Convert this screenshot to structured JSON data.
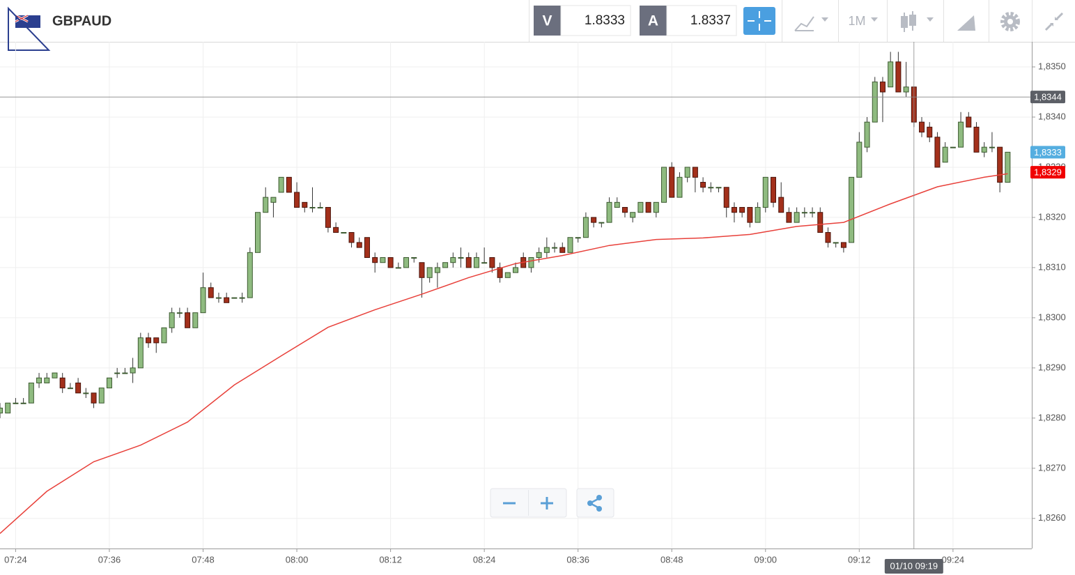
{
  "toolbar": {
    "instrument": "GBPAUD",
    "bid_label": "V",
    "bid": 1.8333,
    "ask_label": "A",
    "ask": 1.8337,
    "timeframe": "1M"
  },
  "chart_data": {
    "type": "candlestick",
    "x": [
      "07:22",
      "07:23",
      "07:24",
      "07:25",
      "07:26",
      "07:27",
      "07:28",
      "07:29",
      "07:30",
      "07:31",
      "07:32",
      "07:33",
      "07:34",
      "07:35",
      "07:36",
      "07:37",
      "07:38",
      "07:39",
      "07:40",
      "07:41",
      "07:42",
      "07:43",
      "07:44",
      "07:45",
      "07:46",
      "07:47",
      "07:48",
      "07:49",
      "07:50",
      "07:51",
      "07:52",
      "07:53",
      "07:54",
      "07:55",
      "07:56",
      "07:57",
      "07:58",
      "07:59",
      "08:00",
      "08:01",
      "08:02",
      "08:03",
      "08:04",
      "08:05",
      "08:06",
      "08:07",
      "08:08",
      "08:09",
      "08:10",
      "08:11",
      "08:12",
      "08:13",
      "08:14",
      "08:15",
      "08:16",
      "08:17",
      "08:18",
      "08:19",
      "08:20",
      "08:21",
      "08:22",
      "08:23",
      "08:24",
      "08:25",
      "08:26",
      "08:27",
      "08:28",
      "08:29",
      "08:30",
      "08:31",
      "08:32",
      "08:33",
      "08:34",
      "08:35",
      "08:36",
      "08:37",
      "08:38",
      "08:39",
      "08:40",
      "08:41",
      "08:42",
      "08:43",
      "08:44",
      "08:45",
      "08:46",
      "08:47",
      "08:48",
      "08:49",
      "08:50",
      "08:51",
      "08:52",
      "08:53",
      "08:54",
      "08:55",
      "08:56",
      "08:57",
      "08:58",
      "08:59",
      "09:00",
      "09:01",
      "09:02",
      "09:03",
      "09:04",
      "09:05",
      "09:06",
      "09:07",
      "09:08",
      "09:09",
      "09:10",
      "09:11",
      "09:12",
      "09:13",
      "09:14",
      "09:15",
      "09:16",
      "09:17",
      "09:18",
      "09:19",
      "09:20",
      "09:21",
      "09:22",
      "09:23",
      "09:24",
      "09:25",
      "09:26",
      "09:27",
      "09:28",
      "09:29",
      "09:30",
      "09:31"
    ],
    "open": [
      1.8281,
      1.8281,
      1.8283,
      1.8283,
      1.8283,
      1.8287,
      1.8287,
      1.8288,
      1.8288,
      1.8286,
      1.8287,
      1.8285,
      1.8285,
      1.8283,
      1.8286,
      1.8289,
      1.8289,
      1.8289,
      1.829,
      1.8296,
      1.8296,
      1.8295,
      1.8298,
      1.8301,
      1.8301,
      1.8298,
      1.8301,
      1.8306,
      1.8304,
      1.8304,
      1.8304,
      1.8304,
      1.8304,
      1.8313,
      1.8321,
      1.8323,
      1.8325,
      1.8328,
      1.8325,
      1.8323,
      1.8322,
      1.8322,
      1.8322,
      1.8318,
      1.8317,
      1.8317,
      1.8315,
      1.8316,
      1.8312,
      1.8311,
      1.8312,
      1.831,
      1.831,
      1.8312,
      1.8311,
      1.8308,
      1.8309,
      1.831,
      1.8311,
      1.8312,
      1.8312,
      1.831,
      1.8311,
      1.8312,
      1.831,
      1.8308,
      1.8309,
      1.8312,
      1.831,
      1.8312,
      1.8313,
      1.8314,
      1.8314,
      1.8313,
      1.8316,
      1.8316,
      1.832,
      1.8319,
      1.8319,
      1.8322,
      1.8322,
      1.832,
      1.8321,
      1.8323,
      1.8321,
      1.8323,
      1.833,
      1.8324,
      1.8328,
      1.833,
      1.8327,
      1.8326,
      1.8326,
      1.8326,
      1.8322,
      1.8322,
      1.8322,
      1.8319,
      1.8322,
      1.8328,
      1.8324,
      1.8321,
      1.8319,
      1.8321,
      1.8321,
      1.8321,
      1.8317,
      1.8315,
      1.8315,
      1.8315,
      1.8328,
      1.8334,
      1.8339,
      1.8347,
      1.8346,
      1.8351,
      1.8345,
      1.8346,
      1.8339,
      1.8338,
      1.8336,
      1.8331,
      1.8334,
      1.8334,
      1.834,
      1.8338,
      1.8333,
      1.8334,
      1.8334,
      1.8327
    ],
    "high": [
      1.8283,
      1.8283,
      1.8284,
      1.8284,
      1.8287,
      1.8289,
      1.8289,
      1.8289,
      1.8289,
      1.8287,
      1.8288,
      1.8286,
      1.8285,
      1.8286,
      1.8288,
      1.829,
      1.829,
      1.8292,
      1.8297,
      1.8297,
      1.8296,
      1.8298,
      1.8302,
      1.8302,
      1.8302,
      1.8301,
      1.8309,
      1.8307,
      1.8305,
      1.8305,
      1.8304,
      1.8305,
      1.8314,
      1.8321,
      1.8326,
      1.8324,
      1.8328,
      1.8328,
      1.8327,
      1.8323,
      1.8326,
      1.8323,
      1.8322,
      1.8319,
      1.8317,
      1.8317,
      1.8316,
      1.8316,
      1.8313,
      1.8312,
      1.8312,
      1.8311,
      1.8312,
      1.8312,
      1.8311,
      1.831,
      1.8311,
      1.8311,
      1.8313,
      1.8314,
      1.8313,
      1.8313,
      1.8314,
      1.8312,
      1.8311,
      1.8309,
      1.8311,
      1.8313,
      1.8312,
      1.8314,
      1.8316,
      1.8315,
      1.8315,
      1.8316,
      1.8316,
      1.8321,
      1.832,
      1.8319,
      1.8324,
      1.8324,
      1.8322,
      1.8321,
      1.8323,
      1.8323,
      1.8323,
      1.833,
      1.8331,
      1.8329,
      1.833,
      1.833,
      1.8328,
      1.8327,
      1.8326,
      1.8326,
      1.8323,
      1.8322,
      1.8322,
      1.8323,
      1.8328,
      1.8328,
      1.8327,
      1.8322,
      1.8322,
      1.8322,
      1.8322,
      1.8322,
      1.8318,
      1.8315,
      1.8315,
      1.8328,
      1.8337,
      1.834,
      1.8348,
      1.8348,
      1.8353,
      1.8353,
      1.8351,
      1.8346,
      1.834,
      1.8339,
      1.8337,
      1.8335,
      1.8334,
      1.8341,
      1.8341,
      1.8339,
      1.8335,
      1.8337,
      1.8334,
      1.8333
    ],
    "low": [
      1.828,
      1.8281,
      1.8283,
      1.8283,
      1.8283,
      1.8286,
      1.8287,
      1.8288,
      1.8285,
      1.8286,
      1.8285,
      1.8284,
      1.8282,
      1.8283,
      1.8286,
      1.8288,
      1.8289,
      1.8287,
      1.829,
      1.8294,
      1.8293,
      1.8295,
      1.8297,
      1.83,
      1.8298,
      1.8298,
      1.8301,
      1.8304,
      1.8303,
      1.8303,
      1.8304,
      1.8303,
      1.8304,
      1.8313,
      1.8321,
      1.832,
      1.8325,
      1.8325,
      1.8322,
      1.8321,
      1.8321,
      1.8322,
      1.8317,
      1.8317,
      1.8317,
      1.8314,
      1.8314,
      1.8312,
      1.8309,
      1.8311,
      1.831,
      1.831,
      1.831,
      1.8311,
      1.8304,
      1.8307,
      1.8306,
      1.831,
      1.831,
      1.831,
      1.831,
      1.831,
      1.8311,
      1.8309,
      1.8307,
      1.8308,
      1.8309,
      1.831,
      1.8309,
      1.8311,
      1.8312,
      1.8313,
      1.8313,
      1.8313,
      1.8315,
      1.8316,
      1.8318,
      1.8318,
      1.8319,
      1.8322,
      1.832,
      1.8319,
      1.8321,
      1.8321,
      1.832,
      1.8323,
      1.8324,
      1.8324,
      1.8327,
      1.8325,
      1.8325,
      1.8325,
      1.8325,
      1.832,
      1.8319,
      1.832,
      1.8318,
      1.8319,
      1.8321,
      1.8322,
      1.8321,
      1.8319,
      1.8319,
      1.832,
      1.832,
      1.8317,
      1.8314,
      1.8314,
      1.8313,
      1.8315,
      1.8328,
      1.8333,
      1.8339,
      1.8339,
      1.8346,
      1.8345,
      1.8344,
      1.8338,
      1.8336,
      1.8335,
      1.833,
      1.8331,
      1.8334,
      1.8334,
      1.8338,
      1.8333,
      1.8332,
      1.8333,
      1.8325,
      1.8327
    ],
    "close": [
      1.8282,
      1.8283,
      1.8283,
      1.8283,
      1.8287,
      1.8288,
      1.8288,
      1.8289,
      1.8286,
      1.8286,
      1.8285,
      1.8285,
      1.8283,
      1.8286,
      1.8288,
      1.8289,
      1.8289,
      1.829,
      1.8296,
      1.8295,
      1.8295,
      1.8298,
      1.8301,
      1.8301,
      1.8298,
      1.8301,
      1.8306,
      1.8304,
      1.8304,
      1.8303,
      1.8304,
      1.8304,
      1.8313,
      1.8321,
      1.8324,
      1.8324,
      1.8328,
      1.8325,
      1.8322,
      1.8322,
      1.8322,
      1.8322,
      1.8318,
      1.8317,
      1.8317,
      1.8315,
      1.8314,
      1.8312,
      1.8311,
      1.8312,
      1.831,
      1.831,
      1.8312,
      1.8312,
      1.8308,
      1.831,
      1.831,
      1.8311,
      1.8312,
      1.8312,
      1.831,
      1.8312,
      1.8311,
      1.831,
      1.8308,
      1.8309,
      1.831,
      1.831,
      1.8312,
      1.8313,
      1.8314,
      1.8314,
      1.8313,
      1.8316,
      1.8316,
      1.832,
      1.8319,
      1.8319,
      1.8323,
      1.8323,
      1.8321,
      1.8321,
      1.8323,
      1.8321,
      1.8323,
      1.833,
      1.8324,
      1.8328,
      1.833,
      1.8328,
      1.8326,
      1.8326,
      1.8326,
      1.8322,
      1.8321,
      1.8321,
      1.8319,
      1.8322,
      1.8328,
      1.8323,
      1.8321,
      1.8319,
      1.8321,
      1.8321,
      1.8321,
      1.8317,
      1.8315,
      1.8315,
      1.8314,
      1.8328,
      1.8335,
      1.8339,
      1.8347,
      1.8345,
      1.8351,
      1.8345,
      1.8346,
      1.8339,
      1.8337,
      1.8336,
      1.833,
      1.8334,
      1.8334,
      1.8339,
      1.8338,
      1.8333,
      1.8334,
      1.8334,
      1.8327,
      1.8333
    ],
    "up_color": "#8fbb80",
    "down_color": "#a3301b",
    "moving_average": {
      "color": "#e8403a",
      "x": [
        "07:22",
        "07:28",
        "07:34",
        "07:40",
        "07:46",
        "07:52",
        "07:58",
        "08:04",
        "08:10",
        "08:16",
        "08:22",
        "08:28",
        "08:34",
        "08:40",
        "08:46",
        "08:52",
        "08:58",
        "09:04",
        "09:10",
        "09:16",
        "09:22",
        "09:28",
        "09:31"
      ],
      "values": [
        1.8257,
        1.82654,
        1.82713,
        1.82746,
        1.82792,
        1.82866,
        1.82924,
        1.82981,
        1.83016,
        1.83047,
        1.8308,
        1.83108,
        1.83124,
        1.83144,
        1.83156,
        1.83159,
        1.83166,
        1.83182,
        1.8319,
        1.83227,
        1.83261,
        1.8328,
        1.83287
      ]
    },
    "xlim": [
      "07:22",
      "09:34"
    ],
    "xticks": [
      "07:24",
      "07:36",
      "07:48",
      "08:00",
      "08:12",
      "08:24",
      "08:36",
      "08:48",
      "09:00",
      "09:12",
      "09:24"
    ],
    "ylim": [
      1.8254,
      1.8355
    ],
    "yticks": [
      {
        "value": 1.826,
        "label": "1,8260"
      },
      {
        "value": 1.827,
        "label": "1,8270"
      },
      {
        "value": 1.828,
        "label": "1,8280"
      },
      {
        "value": 1.829,
        "label": "1,8290"
      },
      {
        "value": 1.83,
        "label": "1,8300"
      },
      {
        "value": 1.831,
        "label": "1,8310"
      },
      {
        "value": 1.832,
        "label": "1,8320"
      },
      {
        "value": 1.833,
        "label": "1,8330"
      },
      {
        "value": 1.834,
        "label": "1,8340"
      },
      {
        "value": 1.835,
        "label": "1,8350"
      }
    ],
    "grid": true,
    "price_markers": [
      {
        "value": 1.8333,
        "label": "1,8333",
        "color": "#55aee0"
      },
      {
        "value": 1.8329,
        "label": "1,8329",
        "color": "#f00000"
      }
    ],
    "crosshair": {
      "x": "09:19",
      "x_label": "01/10 09:19",
      "y": {
        "value": 1.8344,
        "label": "1,8344"
      }
    }
  }
}
